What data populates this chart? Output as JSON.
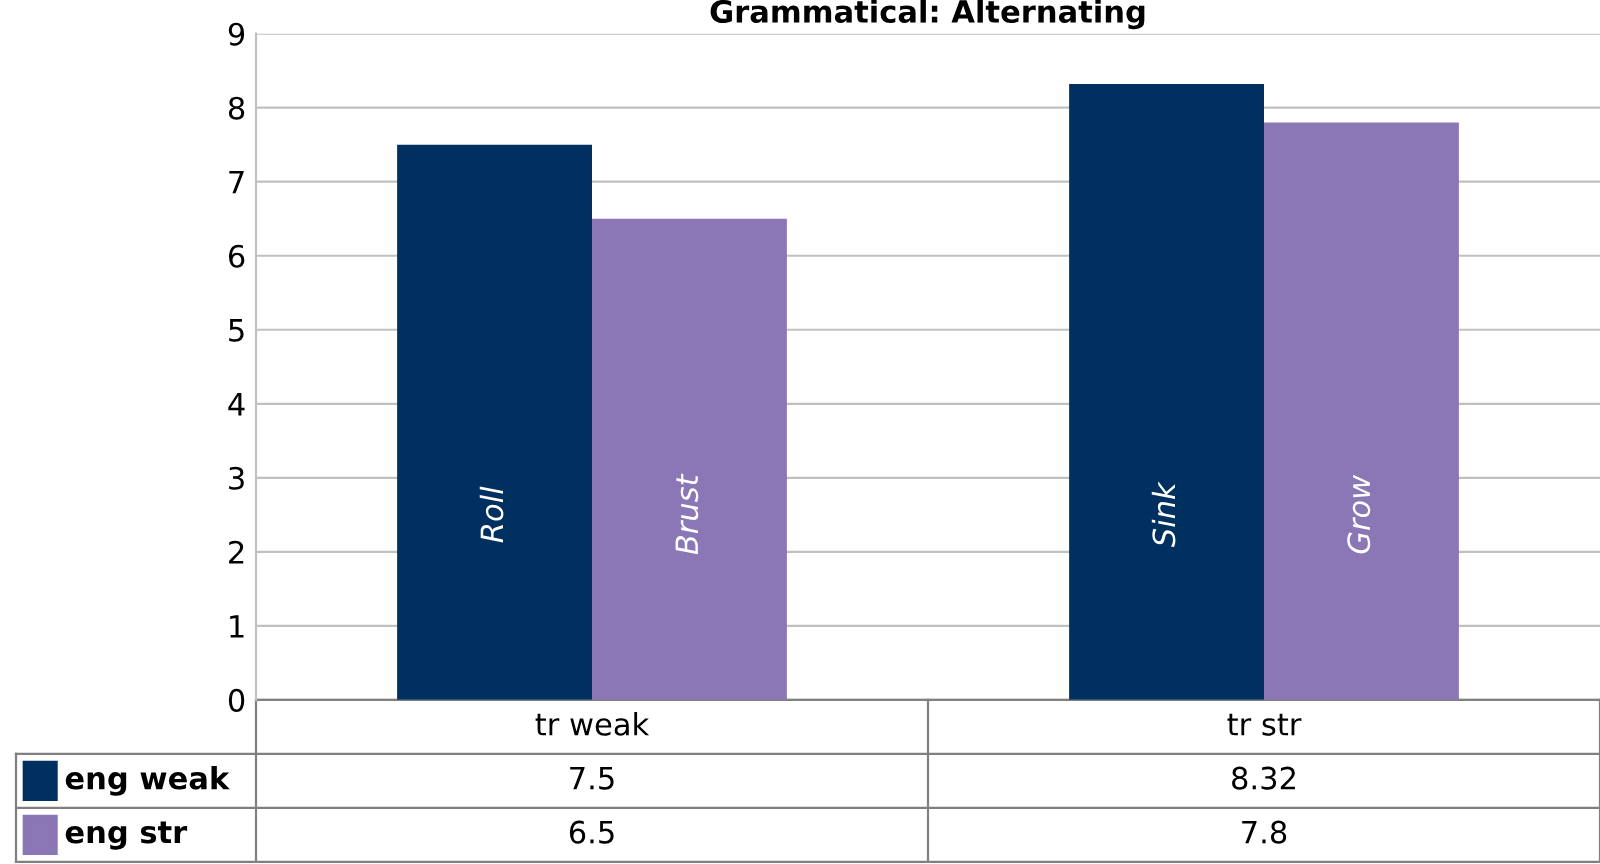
{
  "chart_data": {
    "type": "bar",
    "title": "Grammatical: Alternating",
    "categories": [
      "tr weak",
      "tr str"
    ],
    "series": [
      {
        "name": "eng weak",
        "color": "#003060",
        "values": [
          7.5,
          8.32
        ]
      },
      {
        "name": "eng str",
        "color": "#8b77b5",
        "values": [
          6.5,
          7.8
        ]
      }
    ],
    "ylim": [
      0,
      9
    ],
    "yticks": [
      0,
      1,
      2,
      3,
      4,
      5,
      6,
      7,
      8,
      9
    ],
    "grid": "y",
    "legend": "bottom",
    "data_labels": true,
    "annotations": [
      {
        "text": "Roll",
        "x": "tr weak",
        "y": 2.5
      },
      {
        "text": "Brust",
        "x": "tr weak",
        "y": 2.5
      },
      {
        "text": "Sink",
        "x": "tr str",
        "y": 2.5
      },
      {
        "text": "Grow",
        "x": "tr str",
        "y": 2.5
      }
    ]
  }
}
